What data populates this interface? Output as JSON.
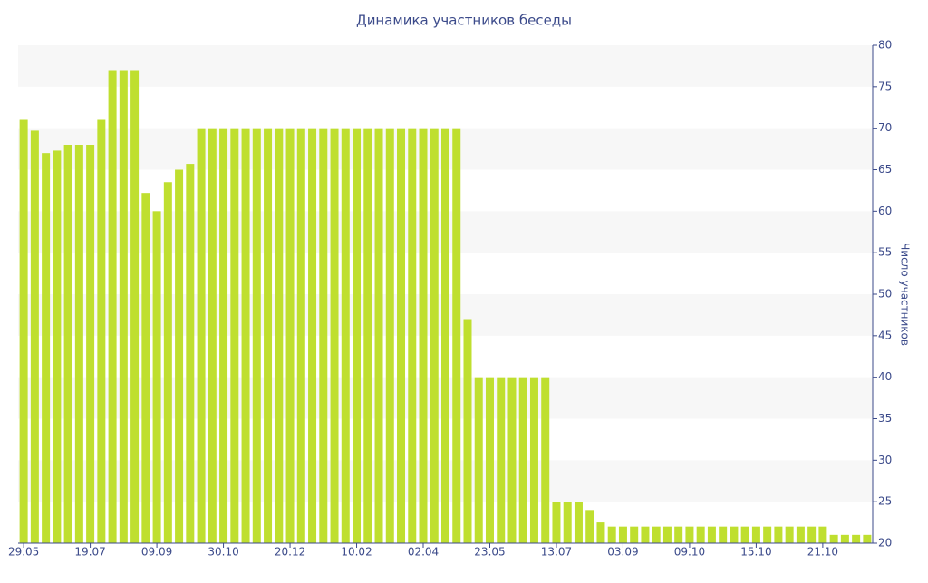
{
  "chart_data": {
    "type": "bar",
    "title": "Динамика участников беседы",
    "y_label": "Число участников",
    "categories": [
      "29.05",
      null,
      null,
      null,
      null,
      null,
      "19.07",
      null,
      null,
      null,
      null,
      null,
      "09.09",
      null,
      null,
      null,
      null,
      null,
      "30.10",
      null,
      null,
      null,
      null,
      null,
      "20.12",
      null,
      null,
      null,
      null,
      null,
      "10.02",
      null,
      null,
      null,
      null,
      null,
      "02.04",
      null,
      null,
      null,
      null,
      null,
      "23.05",
      null,
      null,
      null,
      null,
      null,
      "13.07",
      null,
      null,
      null,
      null,
      null,
      "03.09",
      null,
      null,
      null,
      null,
      null,
      "09.10",
      null,
      null,
      null,
      null,
      null,
      "15.10",
      null,
      null,
      null,
      null,
      null,
      "21.10",
      null,
      null,
      null,
      null
    ],
    "values": [
      71,
      69.7,
      67,
      67.3,
      68,
      68,
      68,
      71,
      77,
      77,
      77,
      62.2,
      60,
      63.5,
      65,
      65.7,
      70,
      70,
      70,
      70,
      70,
      70,
      70,
      70,
      70,
      70,
      70,
      70,
      70,
      70,
      70,
      70,
      70,
      70,
      70,
      70,
      70,
      70,
      70,
      70,
      47,
      40,
      40,
      40,
      40,
      40,
      40,
      40,
      25,
      25,
      25,
      24,
      22.5,
      22,
      22,
      22,
      22,
      22,
      22,
      22,
      22,
      22,
      22,
      22,
      22,
      22,
      22,
      22,
      22,
      22,
      22,
      22,
      22,
      21,
      21,
      21,
      21
    ],
    "color": "#bfdf2f",
    "ylim": [
      20,
      80
    ],
    "yticks": [
      20,
      25,
      30,
      35,
      40,
      45,
      50,
      55,
      60,
      65,
      70,
      75,
      80
    ],
    "grid": true,
    "y_axis_side": "right"
  }
}
